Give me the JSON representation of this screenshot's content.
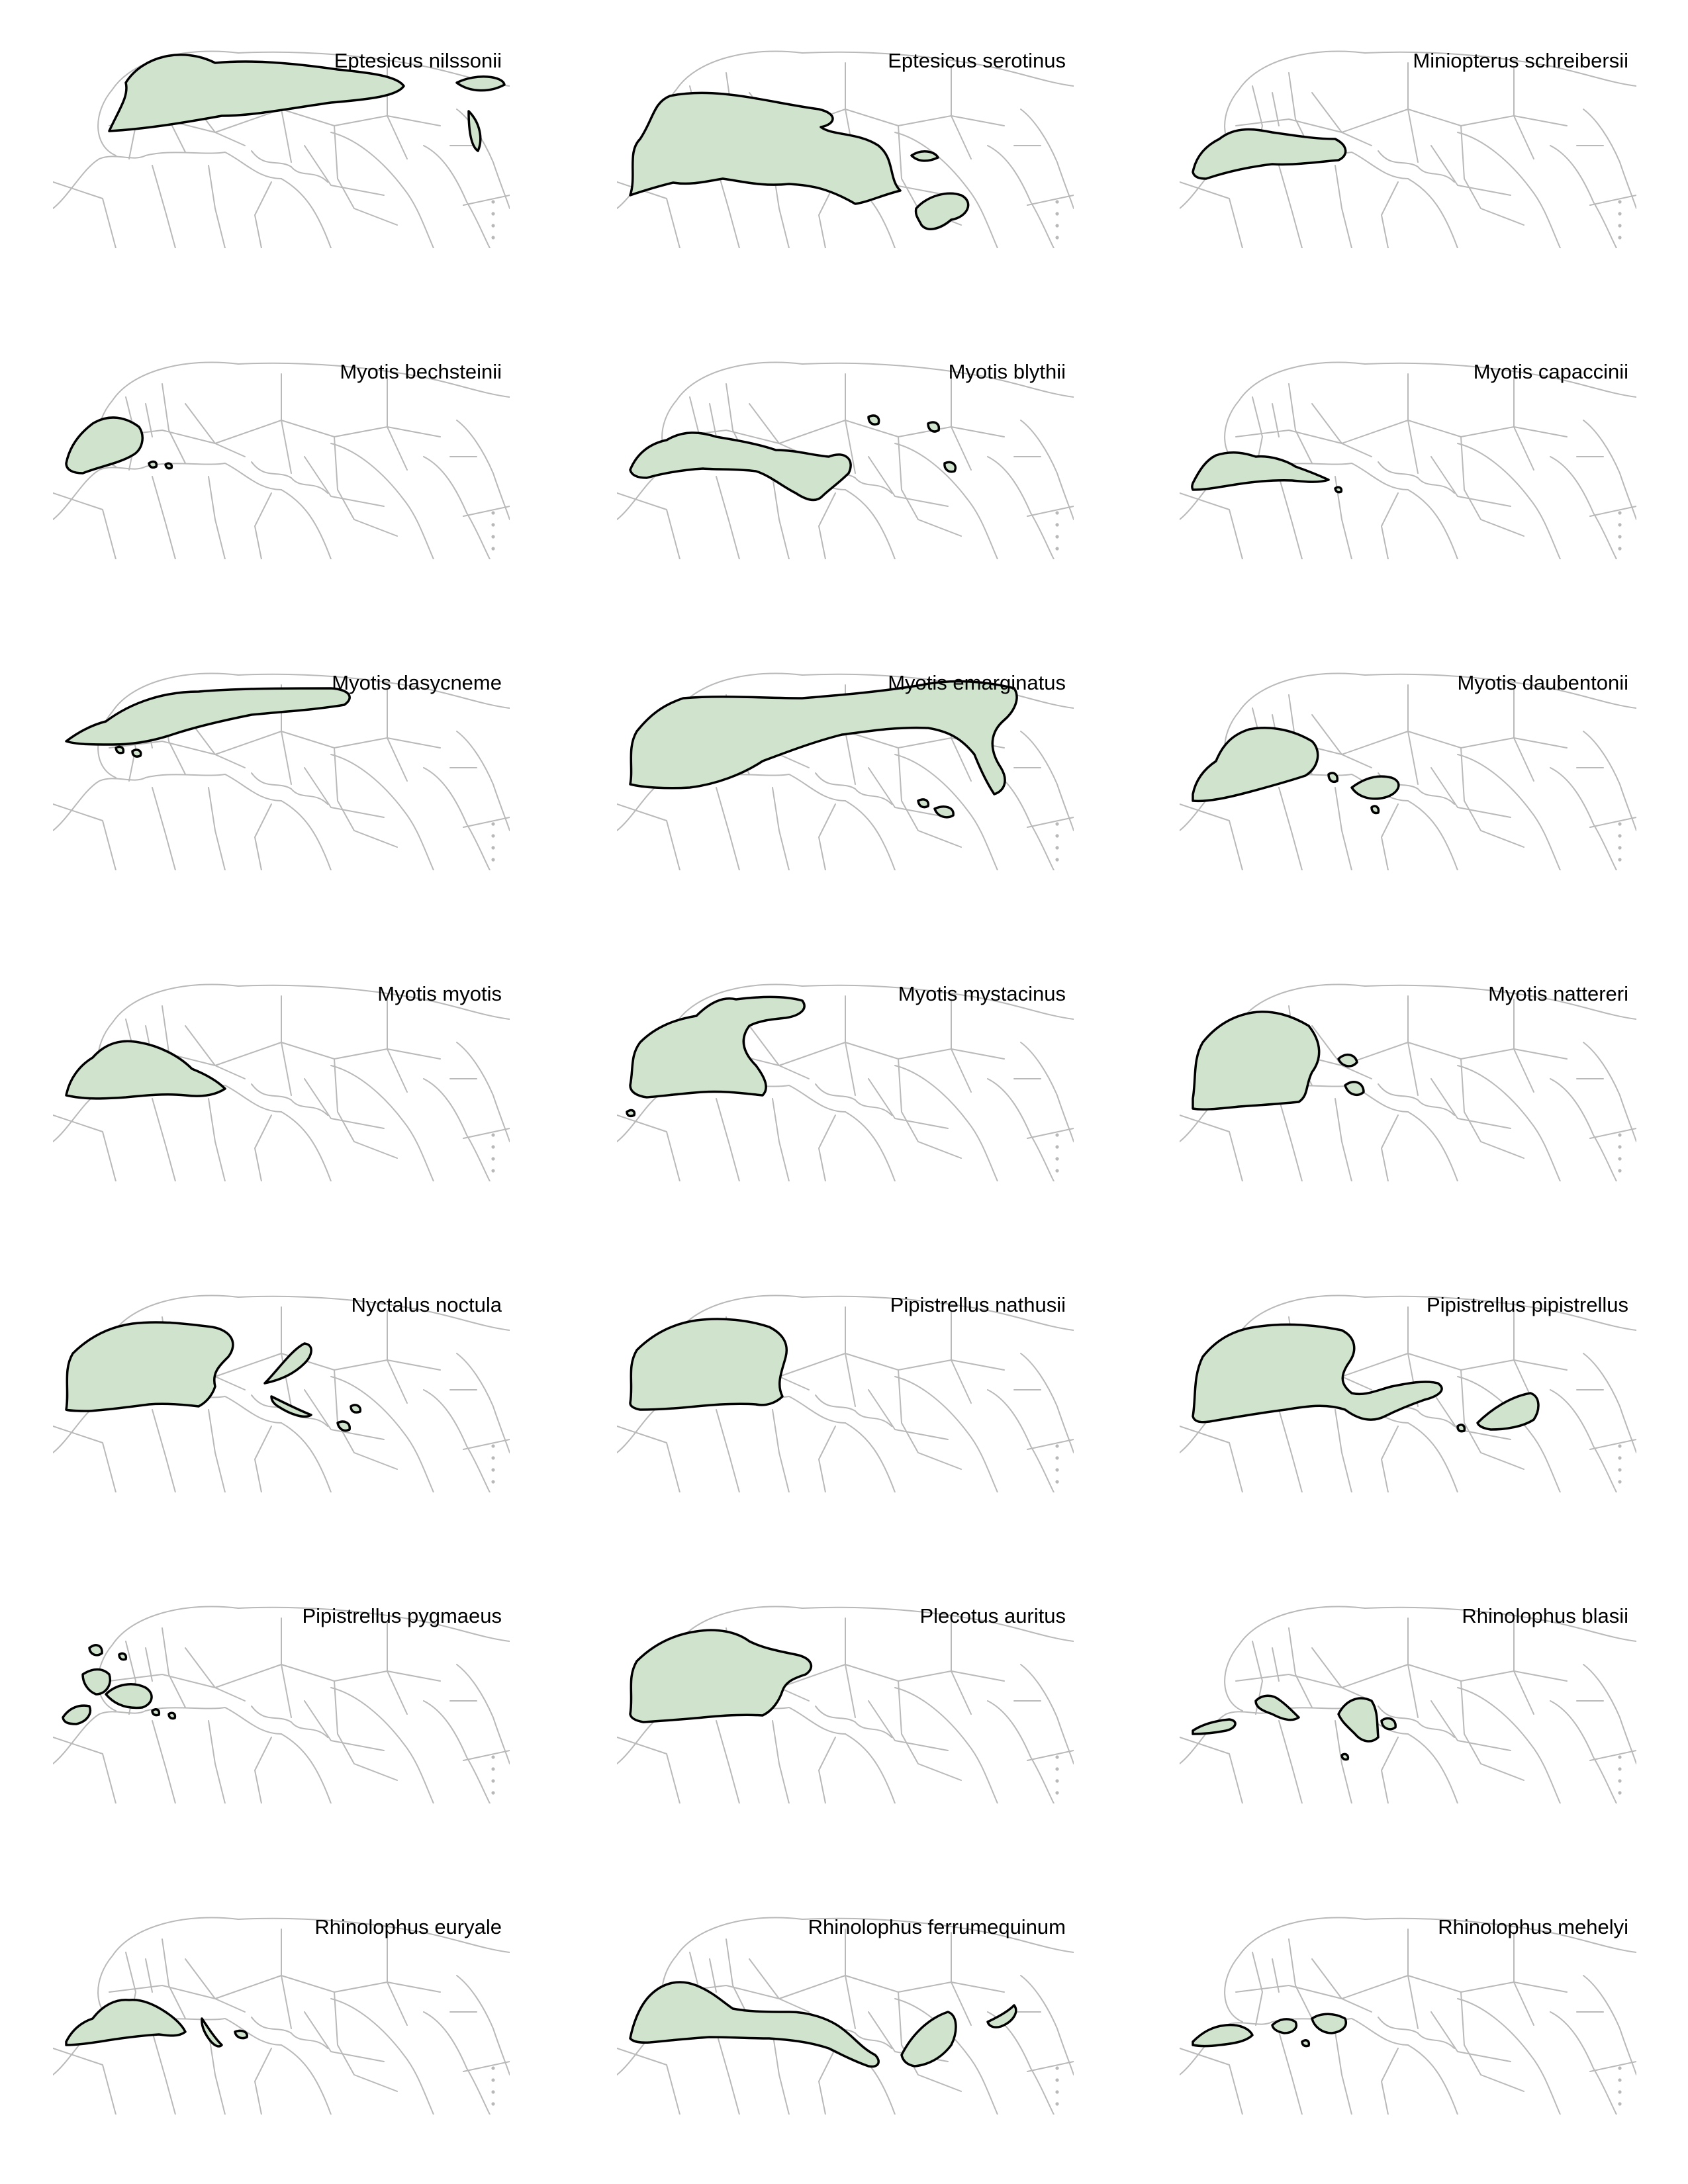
{
  "colors": {
    "range_fill": "#cfe3cd",
    "range_stroke": "#000000",
    "borders": "#b9b9b9"
  },
  "panels": [
    {
      "species": "Eptesicus nilssonii",
      "range": "nilssonii"
    },
    {
      "species": "Eptesicus serotinus",
      "range": "serotinus"
    },
    {
      "species": "Miniopterus schreibersii",
      "range": "schreibersii"
    },
    {
      "species": "Myotis bechsteinii",
      "range": "bechsteinii"
    },
    {
      "species": "Myotis blythii",
      "range": "blythii"
    },
    {
      "species": "Myotis capaccinii",
      "range": "capaccinii"
    },
    {
      "species": "Myotis dasycneme",
      "range": "dasycneme"
    },
    {
      "species": "Myotis emarginatus",
      "range": "emarginatus"
    },
    {
      "species": "Myotis daubentonii",
      "range": "daubentonii"
    },
    {
      "species": "Myotis myotis",
      "range": "myotis"
    },
    {
      "species": "Myotis mystacinus",
      "range": "mystacinus"
    },
    {
      "species": "Myotis nattereri",
      "range": "nattereri"
    },
    {
      "species": "Nyctalus noctula",
      "range": "noctula"
    },
    {
      "species": "Pipistrellus nathusii",
      "range": "nathusii"
    },
    {
      "species": "Pipistrellus pipistrellus",
      "range": "pipistrellus"
    },
    {
      "species": "Pipistrellus pygmaeus",
      "range": "pygmaeus"
    },
    {
      "species": "Plecotus auritus",
      "range": "auritus"
    },
    {
      "species": "Rhinolophus blasii",
      "range": "blasii"
    },
    {
      "species": "Rhinolophus euryale",
      "range": "euryale"
    },
    {
      "species": "Rhinolophus ferrumequinum",
      "range": "ferrumequinum"
    },
    {
      "species": "Rhinolophus mehelyi",
      "range": "mehelyi"
    }
  ]
}
